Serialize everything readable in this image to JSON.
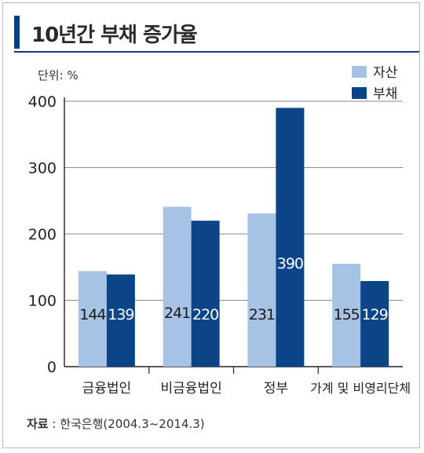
{
  "title": "10년간 부채 증가율",
  "unit_label": "단위: %",
  "source": {
    "label": "자료",
    "separator": " : ",
    "text": "한국은행(2004.3~2014.3)"
  },
  "colors": {
    "asset": "#a6c3e6",
    "debt": "#0b4587",
    "accent": "#0a3f82"
  },
  "chart_data": {
    "type": "bar",
    "categories": [
      "금융법인",
      "비금융법인",
      "정부",
      "가계 및 비영리단체"
    ],
    "series": [
      {
        "name": "자산",
        "values": [
          144,
          241,
          231,
          155
        ]
      },
      {
        "name": "부채",
        "values": [
          139,
          220,
          390,
          129
        ]
      }
    ],
    "ylim": [
      0,
      400
    ],
    "yticks": [
      0,
      100,
      200,
      300,
      400
    ],
    "grid": true,
    "legend_position": "top-right"
  }
}
